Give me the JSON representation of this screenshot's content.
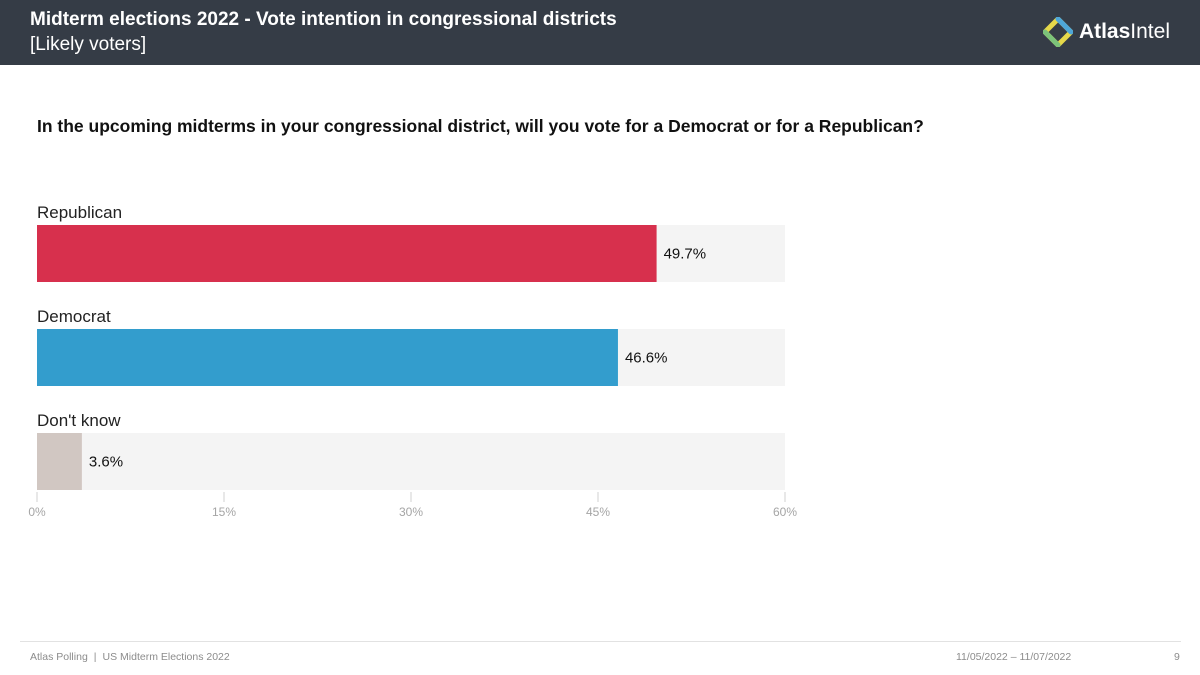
{
  "header": {
    "title": "Midterm elections 2022 - Vote intention in congressional districts",
    "subtitle": "[Likely voters]",
    "logo": {
      "bold": "Atlas",
      "regular": "Intel",
      "icon": "atlasintel-logo-icon"
    }
  },
  "question": "In the upcoming midterms in your congressional district, will you vote for a Democrat or for a Republican?",
  "chart_data": {
    "type": "bar",
    "orientation": "horizontal",
    "title": "",
    "xlabel": "",
    "ylabel": "",
    "categories": [
      "Republican",
      "Democrat",
      "Don't know"
    ],
    "values": [
      49.7,
      46.6,
      3.6
    ],
    "value_labels": [
      "49.7%",
      "46.6%",
      "3.6%"
    ],
    "colors": [
      "#d7304d",
      "#339dcd",
      "#d1c7c2"
    ],
    "track_color": "#f4f4f4",
    "xlim": [
      0,
      60
    ],
    "ticks": [
      0,
      15,
      30,
      45,
      60
    ],
    "tick_labels": [
      "0%",
      "15%",
      "30%",
      "45%",
      "60%"
    ],
    "grid": false,
    "legend": "none"
  },
  "footer": {
    "source": "Atlas Polling",
    "separator": "|",
    "study": "US Midterm Elections 2022",
    "date_range": "11/05/2022 – 11/07/2022",
    "page_number": "9"
  }
}
